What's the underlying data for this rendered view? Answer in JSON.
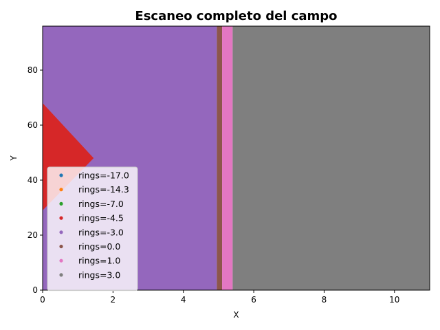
{
  "chart_data": {
    "type": "scatter",
    "title": "Escaneo completo del campo",
    "xlabel": "X",
    "ylabel": "Y",
    "xlim": [
      0,
      11
    ],
    "ylim": [
      0,
      96
    ],
    "xticks": [
      0,
      2,
      4,
      6,
      8,
      10
    ],
    "yticks": [
      0,
      20,
      40,
      60,
      80
    ],
    "grid": false,
    "legend_position": "lower-left",
    "series": [
      {
        "name": "rings=-17.0",
        "color": "#1f77b4",
        "regions": []
      },
      {
        "name": "rings=-14.3",
        "color": "#ff7f0e",
        "regions": []
      },
      {
        "name": "rings=-7.0",
        "color": "#2ca02c",
        "regions": []
      },
      {
        "name": "rings=-4.5",
        "color": "#d62728",
        "regions": [
          {
            "polygon": [
              [
                0,
                68
              ],
              [
                1.45,
                48
              ],
              [
                0,
                29
              ]
            ]
          }
        ]
      },
      {
        "name": "rings=-3.0",
        "color": "#9467bd",
        "regions": [
          {
            "polygon": [
              [
                0,
                0
              ],
              [
                4.95,
                0
              ],
              [
                4.95,
                96
              ],
              [
                0,
                96
              ]
            ]
          }
        ]
      },
      {
        "name": "rings=0.0",
        "color": "#8c564b",
        "regions": [
          {
            "polygon": [
              [
                4.95,
                0
              ],
              [
                5.1,
                0
              ],
              [
                5.1,
                96
              ],
              [
                4.95,
                96
              ]
            ]
          }
        ]
      },
      {
        "name": "rings=1.0",
        "color": "#e377c2",
        "regions": [
          {
            "polygon": [
              [
                5.1,
                0
              ],
              [
                5.4,
                0
              ],
              [
                5.4,
                96
              ],
              [
                5.1,
                96
              ]
            ]
          }
        ]
      },
      {
        "name": "rings=3.0",
        "color": "#7f7f7f",
        "regions": [
          {
            "polygon": [
              [
                5.4,
                0
              ],
              [
                11,
                0
              ],
              [
                11,
                96
              ],
              [
                5.4,
                96
              ]
            ]
          }
        ]
      }
    ]
  }
}
